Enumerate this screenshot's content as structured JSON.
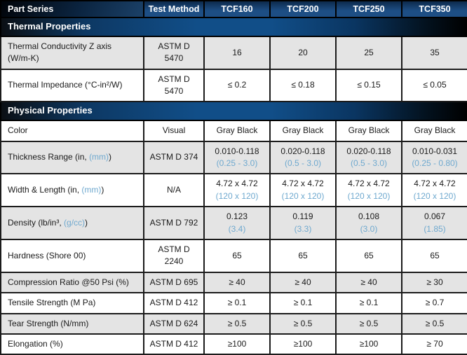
{
  "table": {
    "header": {
      "part_series": "Part Series",
      "test_method": "Test Method",
      "products": [
        "TCF160",
        "TCF200",
        "TCF250",
        "TCF350"
      ]
    },
    "sections": [
      {
        "title": "Thermal Properties",
        "rows": [
          {
            "label": {
              "prefix": "Thermal Conductivity Z axis\n(W/m-K)",
              "blue": "",
              "suffix": ""
            },
            "method": "ASTM D\n5470",
            "shaded": true,
            "cells": [
              {
                "main": "16",
                "sub": ""
              },
              {
                "main": "20",
                "sub": ""
              },
              {
                "main": "25",
                "sub": ""
              },
              {
                "main": "35",
                "sub": ""
              }
            ]
          },
          {
            "label": {
              "prefix": "Thermal Impedance (°C-in²/W)",
              "blue": "",
              "suffix": ""
            },
            "method": "ASTM D\n5470",
            "shaded": false,
            "cells": [
              {
                "main": "≤ 0.2",
                "sub": ""
              },
              {
                "main": "≤ 0.18",
                "sub": ""
              },
              {
                "main": "≤ 0.15",
                "sub": ""
              },
              {
                "main": "≤ 0.05",
                "sub": ""
              }
            ]
          }
        ]
      },
      {
        "title": "Physical Properties",
        "rows": [
          {
            "label": {
              "prefix": "Color",
              "blue": "",
              "suffix": ""
            },
            "method": "Visual",
            "shaded": false,
            "cells": [
              {
                "main": "Gray Black",
                "sub": ""
              },
              {
                "main": "Gray Black",
                "sub": ""
              },
              {
                "main": "Gray Black",
                "sub": ""
              },
              {
                "main": "Gray Black",
                "sub": ""
              }
            ]
          },
          {
            "label": {
              "prefix": "Thickness Range (in, ",
              "blue": "(mm)",
              "suffix": ")"
            },
            "method": "ASTM D 374",
            "shaded": true,
            "cells": [
              {
                "main": "0.010-0.118",
                "sub": "(0.25 - 3.0)"
              },
              {
                "main": "0.020-0.118",
                "sub": "(0.5 - 3.0)"
              },
              {
                "main": "0.020-0.118",
                "sub": "(0.5 - 3.0)"
              },
              {
                "main": "0.010-0.031",
                "sub": "(0.25 - 0.80)"
              }
            ]
          },
          {
            "label": {
              "prefix": "Width & Length (in, ",
              "blue": "(mm)",
              "suffix": ")"
            },
            "method": "N/A",
            "shaded": false,
            "cells": [
              {
                "main": "4.72 x 4.72",
                "sub": "(120 x 120)"
              },
              {
                "main": "4.72 x 4.72",
                "sub": "(120 x 120)"
              },
              {
                "main": "4.72 x 4.72",
                "sub": "(120 x 120)"
              },
              {
                "main": "4.72 x 4.72",
                "sub": "(120 x 120)"
              }
            ]
          },
          {
            "label": {
              "prefix": "Density (lb/in³, ",
              "blue": "(g/cc)",
              "suffix": ")"
            },
            "method": "ASTM D 792",
            "shaded": true,
            "cells": [
              {
                "main": "0.123",
                "sub": "(3.4)"
              },
              {
                "main": "0.119",
                "sub": "(3.3)"
              },
              {
                "main": "0.108",
                "sub": "(3.0)"
              },
              {
                "main": "0.067",
                "sub": "(1.85)"
              }
            ]
          },
          {
            "label": {
              "prefix": "Hardness (Shore 00)",
              "blue": "",
              "suffix": ""
            },
            "method": "ASTM D\n2240",
            "shaded": false,
            "cells": [
              {
                "main": "65",
                "sub": ""
              },
              {
                "main": "65",
                "sub": ""
              },
              {
                "main": "65",
                "sub": ""
              },
              {
                "main": "65",
                "sub": ""
              }
            ]
          },
          {
            "label": {
              "prefix": "Compression Ratio @50 Psi (%)",
              "blue": "",
              "suffix": ""
            },
            "method": "ASTM D 695",
            "shaded": true,
            "cells": [
              {
                "main": "≥ 40",
                "sub": ""
              },
              {
                "main": "≥ 40",
                "sub": ""
              },
              {
                "main": "≥ 40",
                "sub": ""
              },
              {
                "main": "≥ 30",
                "sub": ""
              }
            ]
          },
          {
            "label": {
              "prefix": "Tensile Strength (M Pa)",
              "blue": "",
              "suffix": ""
            },
            "method": "ASTM D 412",
            "shaded": false,
            "cells": [
              {
                "main": "≥ 0.1",
                "sub": ""
              },
              {
                "main": "≥ 0.1",
                "sub": ""
              },
              {
                "main": "≥ 0.1",
                "sub": ""
              },
              {
                "main": "≥ 0.7",
                "sub": ""
              }
            ]
          },
          {
            "label": {
              "prefix": "Tear Strength (N/mm)",
              "blue": "",
              "suffix": ""
            },
            "method": "ASTM D 624",
            "shaded": true,
            "cells": [
              {
                "main": "≥ 0.5",
                "sub": ""
              },
              {
                "main": "≥ 0.5",
                "sub": ""
              },
              {
                "main": "≥ 0.5",
                "sub": ""
              },
              {
                "main": "≥ 0.5",
                "sub": ""
              }
            ]
          },
          {
            "label": {
              "prefix": "Elongation (%)",
              "blue": "",
              "suffix": ""
            },
            "method": "ASTM D 412",
            "shaded": false,
            "cells": [
              {
                "main": "≥100",
                "sub": ""
              },
              {
                "main": "≥100",
                "sub": ""
              },
              {
                "main": "≥100",
                "sub": ""
              },
              {
                "main": "≥ 70",
                "sub": ""
              }
            ]
          }
        ]
      }
    ],
    "colors": {
      "header_blue": "#1d4e84",
      "section_gradient_blue": "#114e88",
      "accent_text_blue": "#6FA9CF",
      "shaded_row": "#e4e4e4",
      "border": "#1b1b1b"
    }
  }
}
